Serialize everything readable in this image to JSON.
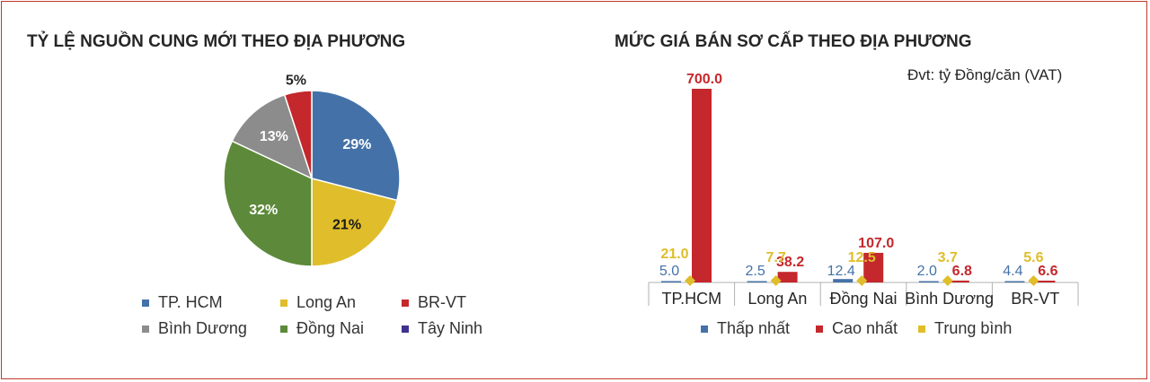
{
  "pie_title": "TỶ LỆ NGUỒN CUNG MỚI THEO ĐỊA PHƯƠNG",
  "bar_title": "MỨC GIÁ BÁN SƠ CẤP THEO ĐỊA PHƯƠNG",
  "unit_label": "Đvt: tỷ Đồng/căn (VAT)",
  "colors": {
    "blue": "#4472a8",
    "yellow": "#e0bd2a",
    "red": "#c4282c",
    "gray": "#8c8c8c",
    "green": "#5d8a3a",
    "purple": "#3d3290",
    "border": "#c0392b"
  },
  "chart_data": [
    {
      "type": "pie",
      "title": "TỶ LỆ NGUỒN CUNG MỚI THEO ĐỊA PHƯƠNG",
      "slices": [
        {
          "label": "TP. HCM",
          "value": 29,
          "display": "29%",
          "color": "#4472a8"
        },
        {
          "label": "Long An",
          "value": 21,
          "display": "21%",
          "color": "#e0bd2a"
        },
        {
          "label": "Đồng Nai",
          "value": 32,
          "display": "32%",
          "color": "#5d8a3a"
        },
        {
          "label": "Bình Dương",
          "value": 13,
          "display": "13%",
          "color": "#8c8c8c"
        },
        {
          "label": "BR-VT",
          "value": 5,
          "display": "5%",
          "color": "#c4282c"
        },
        {
          "label": "Tây Ninh",
          "value": 0,
          "display": "",
          "color": "#3d3290"
        }
      ],
      "legend": [
        {
          "label": "TP. HCM",
          "color": "#4472a8"
        },
        {
          "label": "Long An",
          "color": "#e0bd2a"
        },
        {
          "label": "BR-VT",
          "color": "#c4282c"
        },
        {
          "label": "Bình Dương",
          "color": "#8c8c8c"
        },
        {
          "label": "Đồng Nai",
          "color": "#5d8a3a"
        },
        {
          "label": "Tây Ninh",
          "color": "#3d3290"
        }
      ]
    },
    {
      "type": "bar",
      "title": "MỨC GIÁ BÁN SƠ CẤP THEO ĐỊA PHƯƠNG",
      "ylabel": "Đvt: tỷ Đồng/căn (VAT)",
      "categories": [
        "TP.HCM",
        "Long An",
        "Đồng Nai",
        "Bình Dương",
        "BR-VT"
      ],
      "ylim": [
        0,
        700
      ],
      "series": [
        {
          "name": "Thấp nhất",
          "kind": "bar",
          "color": "#4472a8",
          "values": [
            5.0,
            2.5,
            12.4,
            2.0,
            4.4
          ],
          "labels": [
            "5.0",
            "2.5",
            "12.4",
            "2.0",
            "4.4"
          ]
        },
        {
          "name": "Cao nhất",
          "kind": "bar",
          "color": "#c4282c",
          "values": [
            700.0,
            38.2,
            107.0,
            6.8,
            6.6
          ],
          "labels": [
            "700.0",
            "38.2",
            "107.0",
            "6.8",
            "6.6"
          ]
        },
        {
          "name": "Trung bình",
          "kind": "marker",
          "color": "#e0bd2a",
          "values": [
            21.0,
            7.7,
            12.5,
            3.7,
            5.6
          ],
          "labels": [
            "21.0",
            "7.7",
            "12.5",
            "3.7",
            "5.6"
          ]
        }
      ],
      "legend": [
        {
          "label": "Thấp nhất",
          "color": "#4472a8"
        },
        {
          "label": "Cao nhất",
          "color": "#c4282c"
        },
        {
          "label": "Trung bình",
          "color": "#e0bd2a"
        }
      ]
    }
  ]
}
